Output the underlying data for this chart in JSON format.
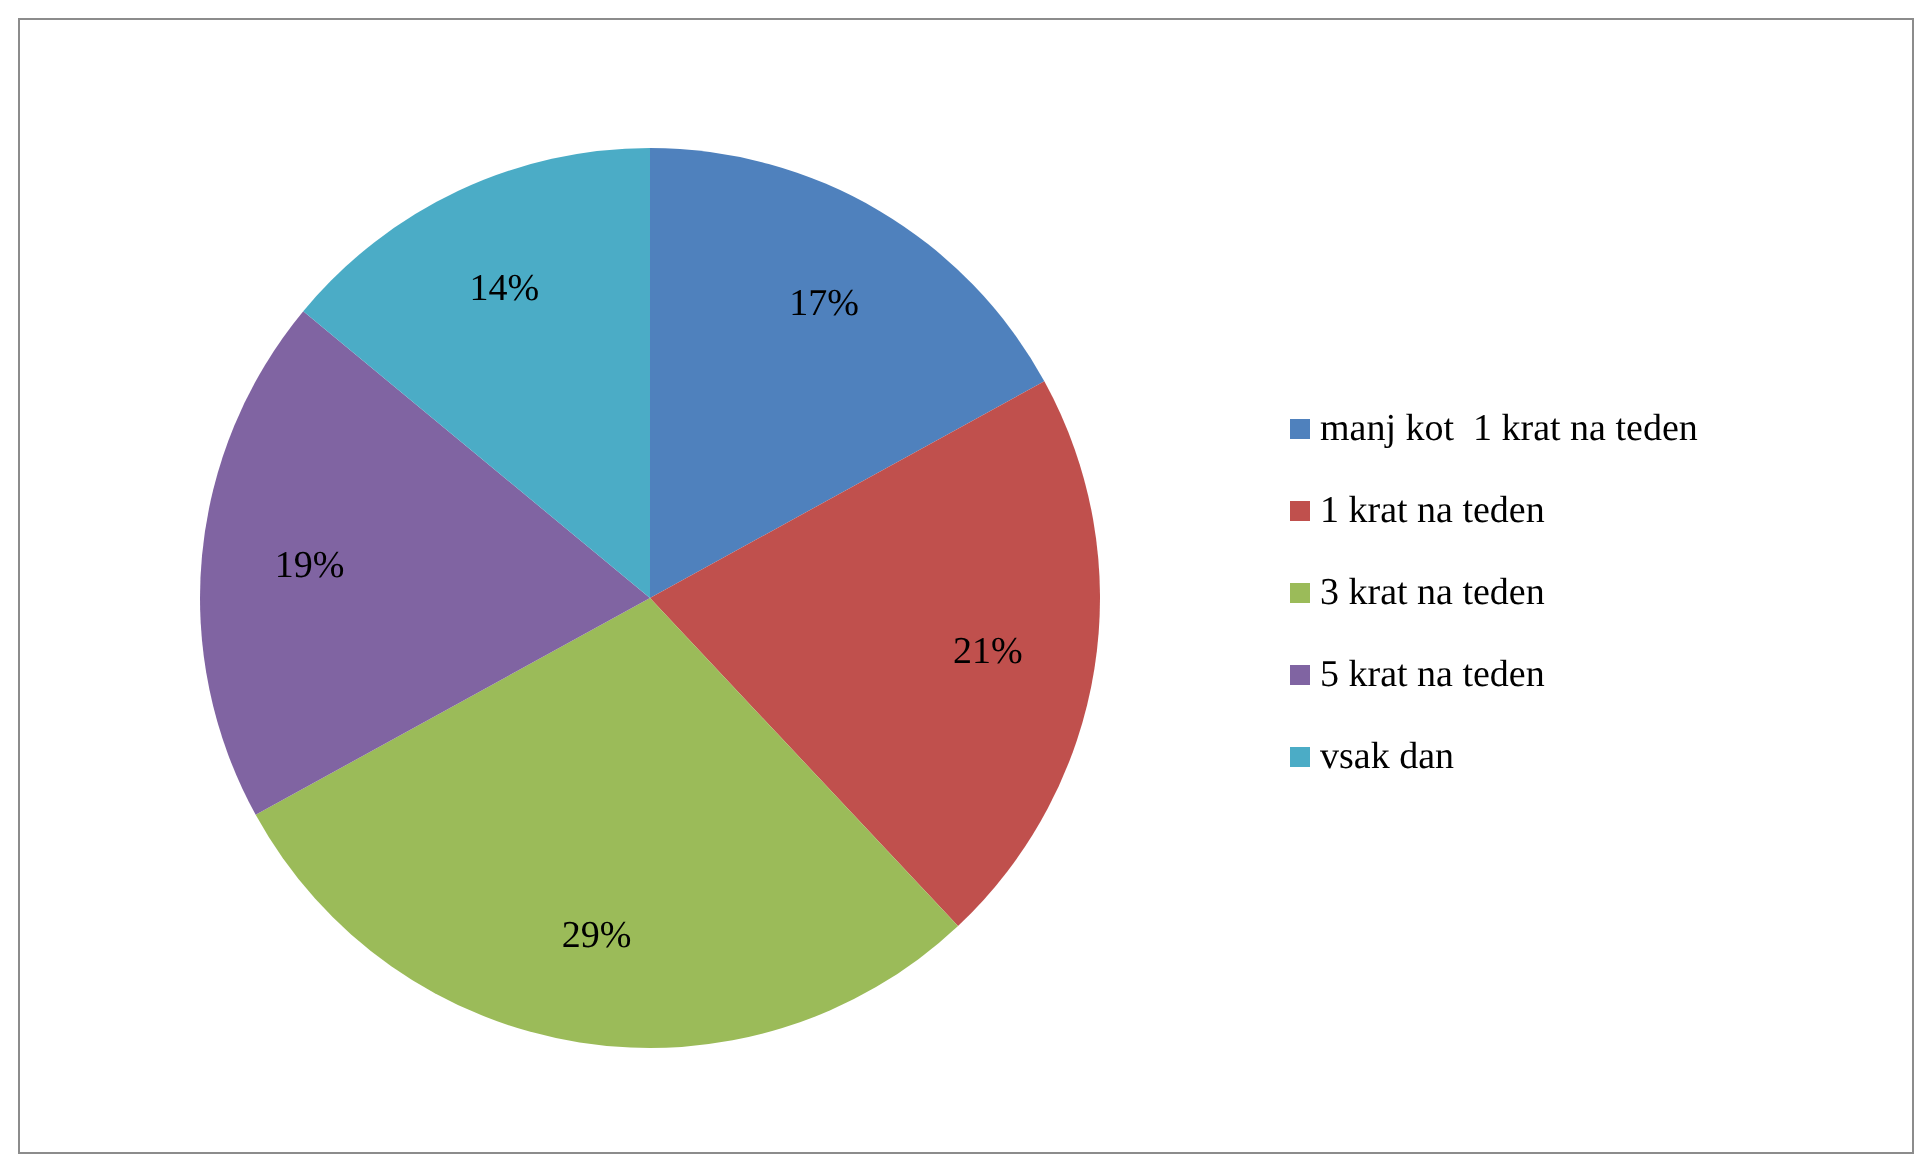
{
  "chart_data": {
    "type": "pie",
    "categories": [
      "manj kot  1 krat na teden",
      "1 krat na teden",
      "3 krat na teden",
      "5 krat na teden",
      "vsak dan"
    ],
    "values": [
      17,
      21,
      29,
      19,
      14
    ],
    "colors": [
      "#4f81bd",
      "#c0504d",
      "#9bbb59",
      "#8064a2",
      "#4bacc6"
    ],
    "value_labels": [
      "17%",
      "21%",
      "29%",
      "19%",
      "14%"
    ],
    "legend": "right"
  }
}
